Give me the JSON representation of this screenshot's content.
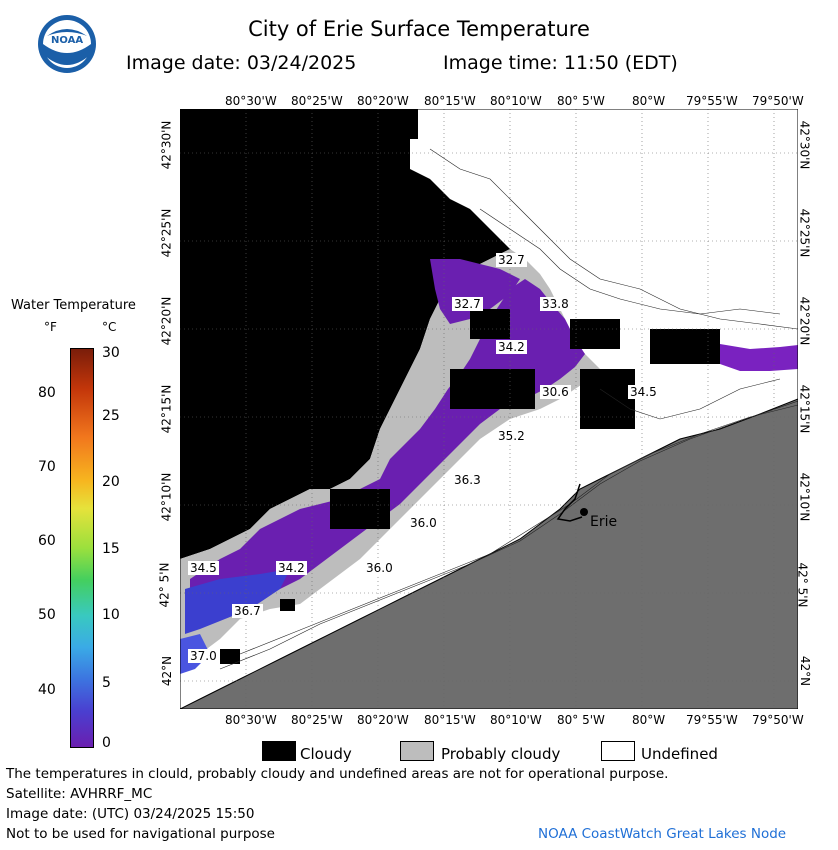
{
  "header": {
    "title": "City of Erie Surface Temperature",
    "image_date_label": "Image date: 03/24/2025",
    "image_time_label": "Image time: 11:50 (EDT)"
  },
  "logo": {
    "text": "NOAA"
  },
  "axes": {
    "lon_ticks": [
      "80°30'W",
      "80°25'W",
      "80°20'W",
      "80°15'W",
      "80°10'W",
      "80° 5'W",
      "80°W",
      "79°55'W",
      "79°50'W"
    ],
    "lat_ticks": [
      "42°30'N",
      "42°25'N",
      "42°20'N",
      "42°15'N",
      "42°10'N",
      "42° 5'N",
      "42°N"
    ]
  },
  "legend": {
    "title": "Water Temperature",
    "unit_f": "°F",
    "unit_c": "°C",
    "f_ticks": [
      "80",
      "70",
      "60",
      "50",
      "40"
    ],
    "c_ticks": [
      "30",
      "25",
      "20",
      "15",
      "10",
      "5",
      "0"
    ]
  },
  "map": {
    "city_label": "Erie",
    "temperature_labels": [
      "32.7",
      "32.7",
      "33.8",
      "34.2",
      "30.6",
      "34.5",
      "35.2",
      "36.3",
      "36.0",
      "34.5",
      "34.2",
      "36.0",
      "36.7",
      "37.0"
    ],
    "colors": {
      "cloud": "#000000",
      "probably_cloudy": "#bdbdbd",
      "undefined": "#ffffff",
      "land": "#6e6e6e",
      "water_cold": "#6a1fb0",
      "water_warm": "#3b3fcf"
    }
  },
  "key": {
    "cloudy": "Cloudy",
    "probably_cloudy": "Probably cloudy",
    "undefined": "Undefined"
  },
  "footer": {
    "line1": "The temperatures in clould, probably cloudy and undefined areas are not for operational purpose.",
    "line2": "Satellite: AVHRRF_MC",
    "line3": "Image date: (UTC) 03/24/2025  15:50",
    "line4": "Not to be used for navigational purpose",
    "credit": "NOAA CoastWatch Great Lakes Node"
  }
}
